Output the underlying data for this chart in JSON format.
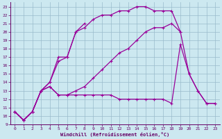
{
  "xlabel": "Windchill (Refroidissement éolien,°C)",
  "bg_color": "#cce8f0",
  "line_color": "#990099",
  "grid_color": "#99bbcc",
  "xlim": [
    -0.5,
    23.5
  ],
  "ylim": [
    9,
    23.5
  ],
  "xticks": [
    0,
    1,
    2,
    3,
    4,
    5,
    6,
    7,
    8,
    9,
    10,
    11,
    12,
    13,
    14,
    15,
    16,
    17,
    18,
    19,
    20,
    21,
    22,
    23
  ],
  "yticks": [
    9,
    10,
    11,
    12,
    13,
    14,
    15,
    16,
    17,
    18,
    19,
    20,
    21,
    22,
    23
  ],
  "lines": [
    {
      "x": [
        0,
        1,
        2,
        3,
        4,
        5,
        6,
        7,
        8,
        9,
        10,
        11,
        12,
        13,
        14,
        15,
        16,
        17,
        18,
        19
      ],
      "y": [
        10.5,
        9.5,
        10.5,
        13.0,
        14.0,
        16.5,
        17.0,
        20.0,
        20.5,
        21.5,
        22.0,
        22.0,
        22.5,
        22.5,
        23.0,
        23.0,
        22.5,
        22.5,
        22.5,
        20.0
      ]
    },
    {
      "x": [
        0,
        1,
        2,
        3,
        4,
        5,
        6,
        7,
        8
      ],
      "y": [
        10.5,
        9.5,
        10.5,
        13.0,
        14.0,
        17.0,
        17.0,
        20.0,
        21.0
      ]
    },
    {
      "x": [
        0,
        1,
        2,
        3,
        4,
        5,
        6,
        7,
        8,
        9,
        10,
        11,
        12,
        13,
        14,
        15,
        16,
        17,
        18,
        19,
        20,
        21,
        22,
        23
      ],
      "y": [
        10.5,
        9.5,
        10.5,
        13.0,
        13.5,
        12.5,
        12.5,
        12.5,
        12.5,
        12.5,
        12.5,
        12.5,
        12.0,
        12.0,
        12.0,
        12.0,
        12.0,
        12.0,
        11.5,
        18.5,
        15.0,
        13.0,
        11.5,
        11.5
      ]
    },
    {
      "x": [
        0,
        1,
        2,
        3,
        4,
        5,
        6,
        7,
        8,
        9,
        10,
        11,
        12,
        13,
        14,
        15,
        16,
        17,
        18,
        19,
        20,
        21,
        22,
        23
      ],
      "y": [
        10.5,
        9.5,
        10.5,
        13.0,
        13.5,
        12.5,
        12.5,
        13.0,
        13.5,
        14.5,
        15.5,
        16.5,
        17.5,
        18.0,
        19.0,
        20.0,
        20.5,
        20.5,
        21.0,
        20.0,
        15.0,
        13.0,
        11.5,
        11.5
      ]
    }
  ]
}
